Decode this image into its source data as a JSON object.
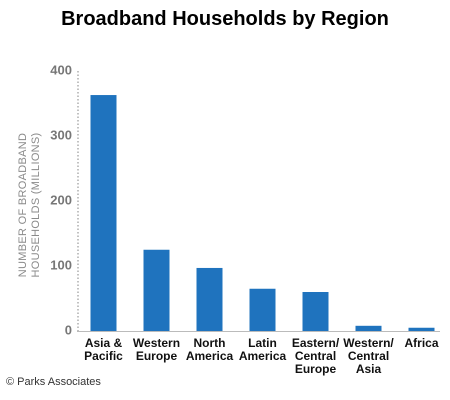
{
  "chart_data": {
    "type": "bar",
    "title": "Broadband Households by Region",
    "y_label": "NUMBER OF BROADBAND\nHOUSEHOLDS (MILLIONS)",
    "source": "© Parks Associates",
    "categories": [
      "Asia &\nPacific",
      "Western\nEurope",
      "North\nAmerica",
      "Latin\nAmerica",
      "Eastern/\nCentral\nEurope",
      "Western/\nCentral\nAsia",
      "Africa"
    ],
    "values": [
      363,
      125,
      97,
      65,
      60,
      8,
      5
    ],
    "color": "#1f73be",
    "ylim": [
      0,
      400
    ],
    "yticks": [
      0,
      100,
      200,
      300,
      400
    ],
    "grid": false
  }
}
